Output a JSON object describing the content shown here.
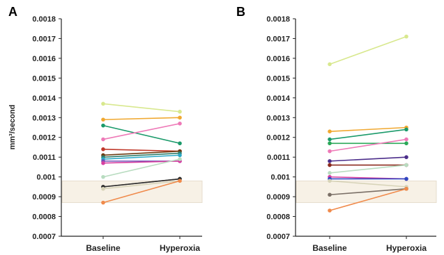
{
  "chart_data": [
    {
      "type": "line",
      "panel_label": "A",
      "ylabel": "mm³/second",
      "categories": [
        "Baseline",
        "Hyperoxia"
      ],
      "ylim": [
        0.0007,
        0.0018
      ],
      "yticks": [
        "0.0007",
        "0.0008",
        "0.0009",
        "0.001",
        "0.0011",
        "0.0012",
        "0.0013",
        "0.0014",
        "0.0015",
        "0.0016",
        "0.0017",
        "0.0018"
      ],
      "reference_band": [
        0.00087,
        0.00098
      ],
      "band_color": "#f7f1e6",
      "series": [
        {
          "color": "#d8e88e",
          "values": [
            0.00137,
            0.00133
          ]
        },
        {
          "color": "#f0a830",
          "values": [
            0.00129,
            0.0013
          ]
        },
        {
          "color": "#1a9a6a",
          "values": [
            0.00126,
            0.00117
          ]
        },
        {
          "color": "#ee79b7",
          "values": [
            0.00119,
            0.00127
          ]
        },
        {
          "color": "#c0392b",
          "values": [
            0.00114,
            0.00113
          ]
        },
        {
          "color": "#6b3b12",
          "values": [
            0.00111,
            0.00113
          ]
        },
        {
          "color": "#2e7d6a",
          "values": [
            0.0011,
            0.00112
          ]
        },
        {
          "color": "#2aa8c6",
          "values": [
            0.00109,
            0.00111
          ]
        },
        {
          "color": "#7050b8",
          "values": [
            0.00108,
            0.00108
          ]
        },
        {
          "color": "#d63fa0",
          "values": [
            0.00107,
            0.00108
          ]
        },
        {
          "color": "#b8dcc0",
          "values": [
            0.001,
            0.00109
          ]
        },
        {
          "color": "#7a6f66",
          "values": [
            0.00095,
            0.00099
          ]
        },
        {
          "color": "#2b2b2b",
          "values": [
            0.00095,
            0.00099
          ]
        },
        {
          "color": "#d7d3b8",
          "values": [
            0.00094,
            0.00098
          ]
        },
        {
          "color": "#f08a4b",
          "values": [
            0.00087,
            0.00098
          ]
        }
      ]
    },
    {
      "type": "line",
      "panel_label": "B",
      "ylabel": "",
      "categories": [
        "Baseline",
        "Hyperoxia"
      ],
      "ylim": [
        0.0007,
        0.0018
      ],
      "yticks": [
        "0.0007",
        "0.0008",
        "0.0009",
        "0.001",
        "0.0011",
        "0.0012",
        "0.0013",
        "0.0014",
        "0.0015",
        "0.0016",
        "0.0017",
        "0.0018"
      ],
      "reference_band": [
        0.00087,
        0.00098
      ],
      "band_color": "#f7f1e6",
      "series": [
        {
          "color": "#d8e88e",
          "values": [
            0.00157,
            0.00171
          ]
        },
        {
          "color": "#f0a830",
          "values": [
            0.00123,
            0.00125
          ]
        },
        {
          "color": "#1a9a6a",
          "values": [
            0.00119,
            0.00124
          ]
        },
        {
          "color": "#2aa858",
          "values": [
            0.00117,
            0.00117
          ]
        },
        {
          "color": "#ee79b7",
          "values": [
            0.00113,
            0.00119
          ]
        },
        {
          "color": "#4b2d8a",
          "values": [
            0.00108,
            0.0011
          ]
        },
        {
          "color": "#8c2a1e",
          "values": [
            0.00106,
            0.00106
          ]
        },
        {
          "color": "#b8dcc0",
          "values": [
            0.00102,
            0.00106
          ]
        },
        {
          "color": "#d63fa0",
          "values": [
            0.001,
            0.00099
          ]
        },
        {
          "color": "#3048c0",
          "values": [
            0.00099,
            0.00099
          ]
        },
        {
          "color": "#d7d3b8",
          "values": [
            0.00098,
            0.00095
          ]
        },
        {
          "color": "#7a6f66",
          "values": [
            0.00091,
            0.00094
          ]
        },
        {
          "color": "#f08a4b",
          "values": [
            0.00083,
            0.00094
          ]
        }
      ]
    }
  ]
}
